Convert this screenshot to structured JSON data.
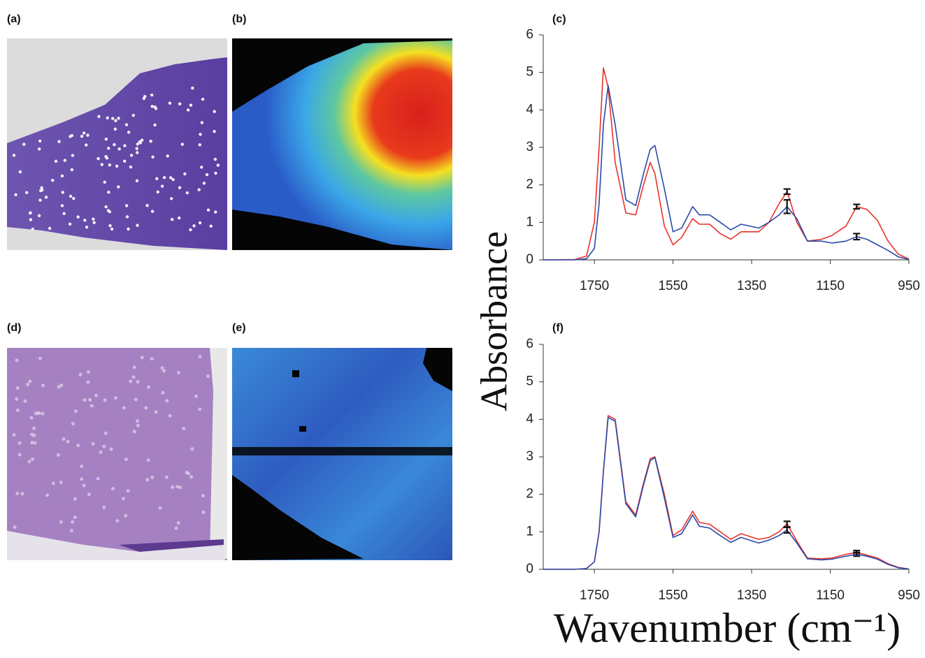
{
  "panel_labels": [
    "(a)",
    "(b)",
    "(c)",
    "(d)",
    "(e)",
    "(f)"
  ],
  "y_axis_label": "Absorbance",
  "x_axis_label": "Wavenumber (cm⁻¹)",
  "chart_data": [
    {
      "type": "line",
      "x": [
        1880,
        1800,
        1770,
        1750,
        1738,
        1727,
        1715,
        1697,
        1670,
        1645,
        1625,
        1608,
        1596,
        1572,
        1550,
        1528,
        1500,
        1483,
        1457,
        1430,
        1403,
        1377,
        1332,
        1306,
        1280,
        1260,
        1235,
        1208,
        1172,
        1146,
        1110,
        1083,
        1057,
        1030,
        1003,
        977,
        950
      ],
      "xlim": [
        1880,
        950
      ],
      "xticks": [
        1750,
        1550,
        1350,
        1150,
        950
      ],
      "ylim": [
        0,
        6
      ],
      "yticks": [
        0,
        1,
        2,
        3,
        4,
        5,
        6
      ],
      "series": [
        {
          "color": "#e8322c",
          "values": [
            0,
            0.01,
            0.1,
            1.0,
            3.0,
            5.12,
            4.6,
            2.6,
            1.25,
            1.2,
            2.0,
            2.6,
            2.3,
            0.9,
            0.4,
            0.6,
            1.1,
            0.95,
            0.95,
            0.7,
            0.55,
            0.75,
            0.75,
            1.0,
            1.5,
            1.82,
            1.0,
            0.5,
            0.55,
            0.65,
            0.9,
            1.42,
            1.35,
            1.05,
            0.5,
            0.15,
            0.02
          ],
          "error_bars": [
            {
              "x": 1260,
              "value": 1.82,
              "error": 0.07
            },
            {
              "x": 1083,
              "value": 1.42,
              "error": 0.06
            }
          ]
        },
        {
          "color": "#2b4aa8",
          "values": [
            0,
            0,
            0.03,
            0.3,
            1.5,
            3.6,
            4.65,
            3.6,
            1.6,
            1.45,
            2.3,
            2.95,
            3.05,
            1.9,
            0.75,
            0.85,
            1.42,
            1.2,
            1.2,
            1.0,
            0.8,
            0.95,
            0.85,
            1.0,
            1.2,
            1.42,
            1.1,
            0.5,
            0.5,
            0.45,
            0.5,
            0.62,
            0.55,
            0.4,
            0.25,
            0.08,
            0.01
          ],
          "error_bars": [
            {
              "x": 1260,
              "value": 1.42,
              "error": 0.18
            },
            {
              "x": 1083,
              "value": 0.62,
              "error": 0.08
            }
          ]
        }
      ]
    },
    {
      "type": "line",
      "x": [
        1880,
        1800,
        1770,
        1750,
        1738,
        1727,
        1715,
        1697,
        1670,
        1645,
        1625,
        1608,
        1596,
        1572,
        1550,
        1528,
        1500,
        1483,
        1457,
        1430,
        1403,
        1377,
        1332,
        1306,
        1280,
        1260,
        1235,
        1208,
        1172,
        1146,
        1110,
        1083,
        1057,
        1030,
        1003,
        977,
        950
      ],
      "xlim": [
        1880,
        950
      ],
      "xticks": [
        1750,
        1550,
        1350,
        1150,
        950
      ],
      "ylim": [
        0,
        6
      ],
      "yticks": [
        0,
        1,
        2,
        3,
        4,
        5,
        6
      ],
      "series": [
        {
          "color": "#e8322c",
          "values": [
            0,
            0,
            0.02,
            0.2,
            1.0,
            2.6,
            4.1,
            4.0,
            1.8,
            1.45,
            2.3,
            2.95,
            3.0,
            2.0,
            0.9,
            1.05,
            1.55,
            1.25,
            1.2,
            1.0,
            0.8,
            0.95,
            0.8,
            0.85,
            1.0,
            1.22,
            0.75,
            0.3,
            0.28,
            0.3,
            0.4,
            0.45,
            0.38,
            0.3,
            0.15,
            0.05,
            0.01
          ],
          "error_bars": [
            {
              "x": 1260,
              "value": 1.2,
              "error": 0.08
            },
            {
              "x": 1083,
              "value": 0.45,
              "error": 0.05
            }
          ]
        },
        {
          "color": "#2b4aa8",
          "values": [
            0,
            0,
            0.02,
            0.2,
            1.0,
            2.6,
            4.05,
            3.95,
            1.75,
            1.4,
            2.25,
            2.9,
            2.98,
            1.9,
            0.85,
            0.95,
            1.45,
            1.15,
            1.1,
            0.9,
            0.72,
            0.85,
            0.7,
            0.78,
            0.9,
            1.05,
            0.7,
            0.28,
            0.25,
            0.27,
            0.35,
            0.4,
            0.35,
            0.27,
            0.13,
            0.04,
            0.01
          ],
          "error_bars": [
            {
              "x": 1260,
              "value": 1.05,
              "error": 0.08
            },
            {
              "x": 1083,
              "value": 0.4,
              "error": 0.05
            }
          ]
        }
      ]
    }
  ]
}
